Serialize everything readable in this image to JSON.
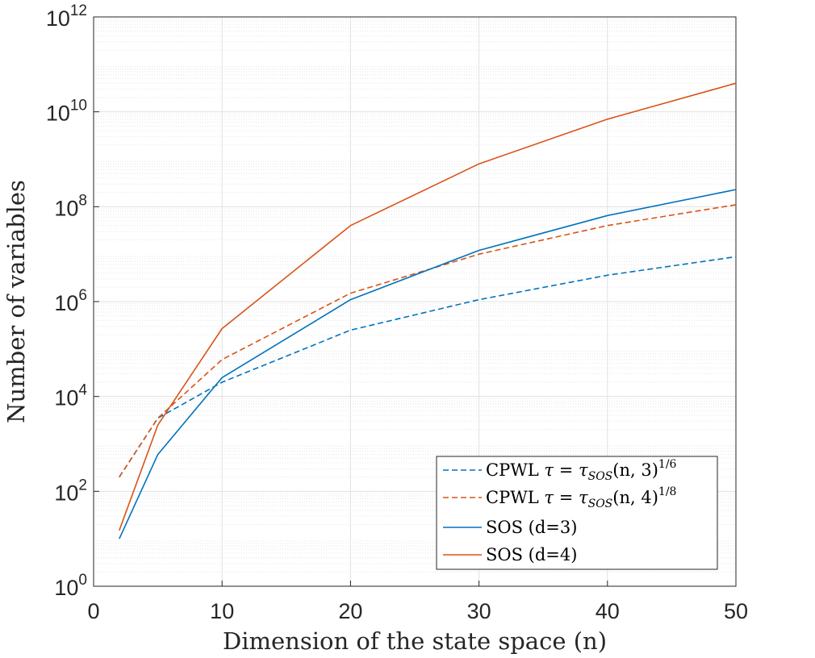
{
  "chart_data": {
    "type": "line",
    "title": "",
    "xlabel": "Dimension of the state space (n)",
    "ylabel": "Number of variables",
    "xlim": [
      0,
      50
    ],
    "ylim": [
      1,
      1000000000000
    ],
    "yscale": "log",
    "xticks": [
      "0",
      "10",
      "20",
      "30",
      "40",
      "50"
    ],
    "yticks": [
      {
        "base": "10",
        "exp": "0"
      },
      {
        "base": "10",
        "exp": "2"
      },
      {
        "base": "10",
        "exp": "4"
      },
      {
        "base": "10",
        "exp": "6"
      },
      {
        "base": "10",
        "exp": "8"
      },
      {
        "base": "10",
        "exp": "10"
      },
      {
        "base": "10",
        "exp": "12"
      }
    ],
    "grid": true,
    "minor_grid": true,
    "legend_position": "bottom-right",
    "x": [
      2,
      5,
      10,
      20,
      30,
      40,
      50
    ],
    "series": [
      {
        "name": "CPWL τ = τSOS(n,3)1/6",
        "legend_parts": {
          "prefix": "CPWL ",
          "tau": "τ",
          "eq": " = ",
          "tau2": "τ",
          "sub": "SOS",
          "args": "(n, 3)",
          "sup": "1/6"
        },
        "color": "#0072BD",
        "dash": "dashed",
        "values": [
          200,
          3500,
          20000,
          250000,
          1100000,
          3600000,
          8800000
        ]
      },
      {
        "name": "CPWL τ = τSOS(n,4)1/8",
        "legend_parts": {
          "prefix": "CPWL ",
          "tau": "τ",
          "eq": " = ",
          "tau2": "τ",
          "sub": "SOS",
          "args": "(n, 4)",
          "sup": "1/8"
        },
        "color": "#D95319",
        "dash": "dashed",
        "values": [
          200,
          3500,
          60000,
          1500000,
          10000000,
          40000000,
          110000000
        ]
      },
      {
        "name": "SOS (d=3)",
        "color": "#0072BD",
        "dash": "solid",
        "values": [
          10,
          600,
          25000,
          1100000,
          12000000,
          65000000,
          230000000
        ]
      },
      {
        "name": "SOS (d=4)",
        "color": "#D95319",
        "dash": "solid",
        "values": [
          15,
          2500,
          270000,
          40000000,
          800000000,
          7000000000,
          40000000000
        ]
      }
    ]
  }
}
